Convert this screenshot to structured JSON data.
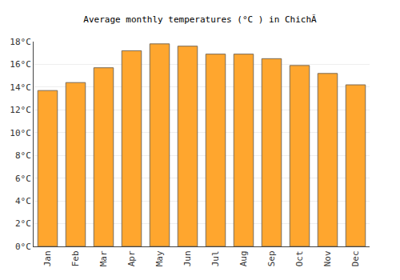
{
  "chart_data": {
    "type": "bar",
    "title": "Average monthly temperatures (°C ) in ChichÃ",
    "categories": [
      "Jan",
      "Feb",
      "Mar",
      "Apr",
      "May",
      "Jun",
      "Jul",
      "Aug",
      "Sep",
      "Oct",
      "Nov",
      "Dec"
    ],
    "values": [
      13.7,
      14.4,
      15.7,
      17.2,
      17.8,
      17.6,
      16.9,
      16.9,
      16.5,
      15.9,
      15.2,
      14.2
    ],
    "color": "#ffa62e",
    "ylim": [
      0,
      18
    ],
    "yticks": [
      {
        "value": 0,
        "label": "0°C"
      },
      {
        "value": 2,
        "label": "2°C"
      },
      {
        "value": 4,
        "label": "4°C"
      },
      {
        "value": 6,
        "label": "6°C"
      },
      {
        "value": 8,
        "label": "8°C"
      },
      {
        "value": 10,
        "label": "10°C"
      },
      {
        "value": 12,
        "label": "12°C"
      },
      {
        "value": 14,
        "label": "14°C"
      },
      {
        "value": 16,
        "label": "16°C"
      },
      {
        "value": 18,
        "label": "18°C"
      }
    ],
    "grid": true
  }
}
